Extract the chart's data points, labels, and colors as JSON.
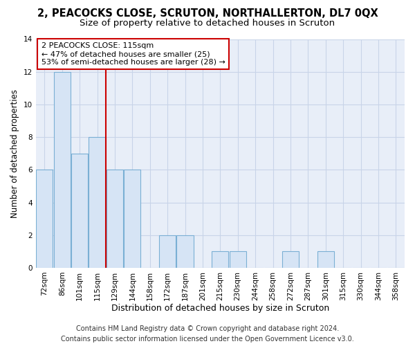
{
  "title": "2, PEACOCKS CLOSE, SCRUTON, NORTHALLERTON, DL7 0QX",
  "subtitle": "Size of property relative to detached houses in Scruton",
  "xlabel": "Distribution of detached houses by size in Scruton",
  "ylabel": "Number of detached properties",
  "categories": [
    "72sqm",
    "86sqm",
    "101sqm",
    "115sqm",
    "129sqm",
    "144sqm",
    "158sqm",
    "172sqm",
    "187sqm",
    "201sqm",
    "215sqm",
    "230sqm",
    "244sqm",
    "258sqm",
    "272sqm",
    "287sqm",
    "301sqm",
    "315sqm",
    "330sqm",
    "344sqm",
    "358sqm"
  ],
  "values": [
    6,
    12,
    7,
    8,
    6,
    6,
    0,
    2,
    2,
    0,
    1,
    1,
    0,
    0,
    1,
    0,
    1,
    0,
    0,
    0,
    0
  ],
  "bar_color": "#d6e4f5",
  "bar_edge_color": "#7aafd4",
  "annotation_text": "2 PEACOCKS CLOSE: 115sqm\n← 47% of detached houses are smaller (25)\n53% of semi-detached houses are larger (28) →",
  "annotation_box_color": "#ffffff",
  "annotation_box_edge_color": "#cc0000",
  "vline_color": "#cc0000",
  "vline_index": 3,
  "ylim": [
    0,
    14
  ],
  "yticks": [
    0,
    2,
    4,
    6,
    8,
    10,
    12,
    14
  ],
  "grid_color": "#c8d4e8",
  "background_color": "#e8eef8",
  "footer_line1": "Contains HM Land Registry data © Crown copyright and database right 2024.",
  "footer_line2": "Contains public sector information licensed under the Open Government Licence v3.0.",
  "title_fontsize": 10.5,
  "subtitle_fontsize": 9.5,
  "ylabel_fontsize": 8.5,
  "xlabel_fontsize": 9,
  "tick_fontsize": 7.5,
  "footer_fontsize": 7,
  "annot_fontsize": 8
}
